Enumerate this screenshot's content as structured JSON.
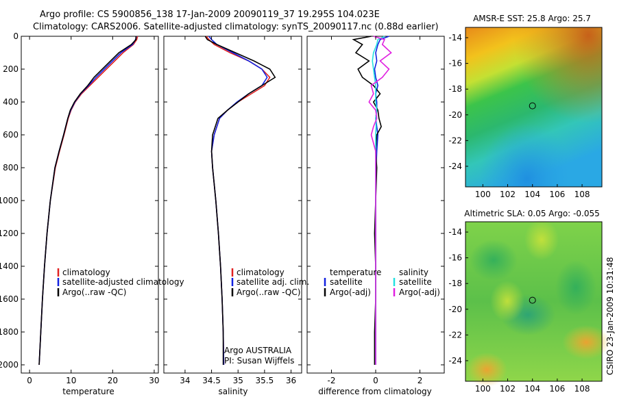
{
  "title": {
    "line1": "Argo profile: CS 5900856_138 17-Jan-2009 20090119_37 19.295S 104.023E",
    "line2": "Climatology: CARS2006. Satellite-adjusted climatology: synTS_20090117.nc (0.88d earlier)"
  },
  "side_label": "CSIRO  23-Jan-2009 10:31:48",
  "colors": {
    "climatology": "#e02020",
    "satellite": "#1020e0",
    "argo": "#000000",
    "sat_sal": "#22e0e0",
    "argo_sal": "#e020e0"
  },
  "chart_data": [
    {
      "id": "temperature",
      "type": "line",
      "xlabel": "temperature",
      "ylabel": "",
      "xlim": [
        -2,
        31
      ],
      "ylim": [
        2050,
        0
      ],
      "xticks": [
        0,
        10,
        20,
        30
      ],
      "yticks": [
        0,
        200,
        400,
        600,
        800,
        1000,
        1200,
        1400,
        1600,
        1800,
        2000
      ],
      "depth": [
        0,
        20,
        50,
        100,
        150,
        200,
        250,
        300,
        350,
        400,
        450,
        500,
        600,
        700,
        800,
        1000,
        1200,
        1400,
        1600,
        1800,
        2000
      ],
      "series": [
        {
          "name": "climatology",
          "values": [
            26,
            25.8,
            25.0,
            22.5,
            20.5,
            18.5,
            16.5,
            14.5,
            12.5,
            11.0,
            10.0,
            9.3,
            8.3,
            7.2,
            6.2,
            5.0,
            4.2,
            3.6,
            3.1,
            2.7,
            2.3
          ]
        },
        {
          "name": "satellite-adjusted climatology",
          "values": [
            25.7,
            25.5,
            24.8,
            22.0,
            20.0,
            18.0,
            16.0,
            14.2,
            12.3,
            10.9,
            9.9,
            9.2,
            8.2,
            7.1,
            6.1,
            5.0,
            4.2,
            3.6,
            3.1,
            2.7,
            2.3
          ]
        },
        {
          "name": "Argo(..raw -QC)",
          "values": [
            25.6,
            25.6,
            24.5,
            21.5,
            19.5,
            17.5,
            15.5,
            14.0,
            12.2,
            10.8,
            9.8,
            9.2,
            8.2,
            7.1,
            6.1,
            5.0,
            4.2,
            3.6,
            3.1,
            2.7,
            2.3
          ]
        }
      ],
      "legend": [
        "climatology",
        "satellite-adjusted climatology",
        "Argo(..raw -QC)"
      ]
    },
    {
      "id": "salinity",
      "type": "line",
      "xlabel": "salinity",
      "xlim": [
        33.6,
        36.2
      ],
      "ylim": [
        2050,
        0
      ],
      "xticks": [
        34,
        34.5,
        35,
        35.5,
        36
      ],
      "depth": [
        0,
        20,
        50,
        100,
        150,
        200,
        250,
        300,
        350,
        400,
        450,
        500,
        600,
        700,
        800,
        1000,
        1200,
        1400,
        1600,
        1800,
        2000
      ],
      "series": [
        {
          "name": "climatology",
          "values": [
            34.4,
            34.45,
            34.55,
            34.85,
            35.2,
            35.45,
            35.6,
            35.5,
            35.25,
            35.0,
            34.8,
            34.65,
            34.55,
            34.5,
            34.52,
            34.58,
            34.63,
            34.67,
            34.7,
            34.72,
            34.73
          ]
        },
        {
          "name": "satellite adj. clim.",
          "values": [
            34.45,
            34.5,
            34.6,
            34.9,
            35.2,
            35.45,
            35.55,
            35.45,
            35.2,
            34.98,
            34.8,
            34.65,
            34.55,
            34.5,
            34.52,
            34.58,
            34.63,
            34.67,
            34.7,
            34.72,
            34.73
          ]
        },
        {
          "name": "Argo(..raw -QC)",
          "values": [
            34.38,
            34.42,
            34.6,
            34.95,
            35.3,
            35.6,
            35.7,
            35.45,
            35.2,
            35.0,
            34.8,
            34.62,
            34.52,
            34.5,
            34.52,
            34.58,
            34.63,
            34.67,
            34.7,
            34.72,
            34.72
          ]
        }
      ],
      "legend": [
        "climatology",
        "satellite adj. clim.",
        "Argo(..raw -QC)"
      ],
      "annotation": [
        "Argo AUSTRALIA",
        "PI: Susan Wijffels"
      ]
    },
    {
      "id": "difference",
      "type": "line",
      "xlabel": "difference from climatology",
      "xlim": [
        -3.1,
        3.1
      ],
      "ylim": [
        2050,
        0
      ],
      "xticks": [
        -2,
        0,
        2
      ],
      "depth": [
        0,
        20,
        50,
        100,
        150,
        200,
        250,
        300,
        350,
        400,
        450,
        500,
        550,
        600,
        700,
        800,
        1000,
        1200,
        1400,
        1600,
        1800,
        2000
      ],
      "series": [
        {
          "name": "temperature satellite",
          "values": [
            0.6,
            0.2,
            0.1,
            0.0,
            0.05,
            -0.05,
            0.0,
            0.1,
            0.0,
            0.05,
            0.05,
            0.0,
            0.05,
            0.1,
            0.05,
            0.02,
            0.0,
            0.0,
            0.0,
            0.0,
            0.0,
            0.0
          ]
        },
        {
          "name": "temperature Argo(-adj)",
          "values": [
            -0.2,
            -1.0,
            -0.6,
            -0.9,
            -0.3,
            -0.8,
            -0.6,
            -0.1,
            0.2,
            -0.1,
            0.1,
            0.15,
            0.25,
            0.05,
            0.0,
            0.05,
            0.0,
            -0.05,
            0.0,
            0.0,
            -0.05,
            -0.05
          ]
        },
        {
          "name": "salinity satellite",
          "values": [
            0.4,
            0.1,
            0.05,
            -0.1,
            -0.15,
            -0.1,
            -0.05,
            0.0,
            0.0,
            0.0,
            0.05,
            0.0,
            0.02,
            0.0,
            0.0,
            0.0,
            0.0,
            0.0,
            0.0,
            0.0,
            0.0,
            0.0
          ]
        },
        {
          "name": "salinity Argo(-adj)",
          "values": [
            -0.1,
            0.4,
            0.3,
            0.7,
            0.2,
            0.6,
            0.3,
            -0.2,
            -0.1,
            -0.3,
            0.0,
            0.05,
            -0.1,
            -0.2,
            0.0,
            0.0,
            0.0,
            0.0,
            0.0,
            0.0,
            0.0,
            0.0
          ]
        }
      ],
      "legend_temperature": {
        "title": "temperature",
        "items": [
          "satellite",
          "Argo(-adj)"
        ]
      },
      "legend_salinity": {
        "title": "salinity",
        "items": [
          "satellite",
          "Argo(-adj)"
        ]
      }
    },
    {
      "id": "sst_map",
      "type": "heatmap",
      "title": "AMSR-E SST: 25.8 Argo: 25.7",
      "xlim": [
        98.6,
        109.6
      ],
      "ylim": [
        -25.6,
        -13.2
      ],
      "xticks": [
        100,
        102,
        104,
        106,
        108
      ],
      "yticks": [
        -14,
        -16,
        -18,
        -20,
        -22,
        -24
      ],
      "marker": {
        "lon": 104.0,
        "lat": -19.3
      }
    },
    {
      "id": "sla_map",
      "type": "heatmap",
      "title": "Altimetric SLA: 0.05 Argo: -0.055",
      "xlim": [
        98.6,
        109.6
      ],
      "ylim": [
        -25.6,
        -13.2
      ],
      "xticks": [
        100,
        102,
        104,
        106,
        108
      ],
      "yticks": [
        -14,
        -16,
        -18,
        -20,
        -22,
        -24
      ],
      "marker": {
        "lon": 104.0,
        "lat": -19.3
      }
    }
  ]
}
